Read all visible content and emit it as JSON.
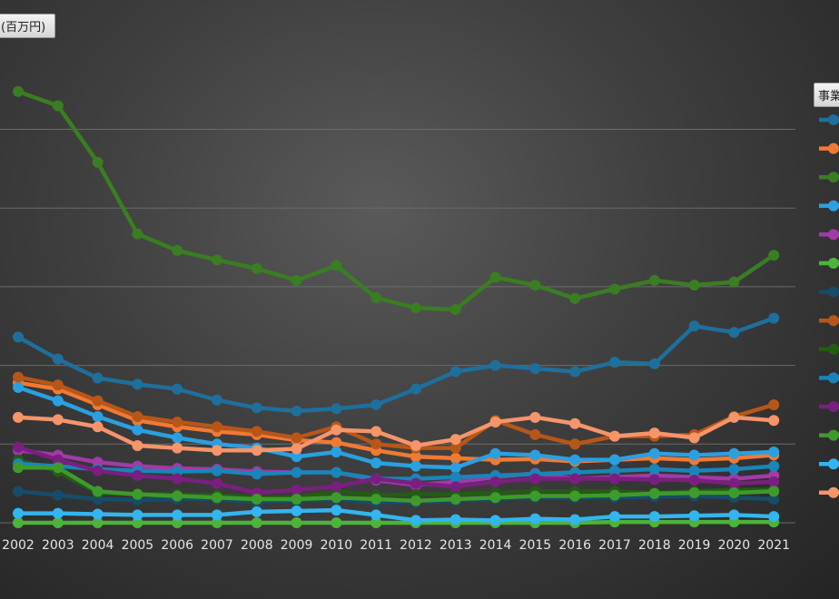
{
  "chart_data": {
    "type": "line",
    "unit_label": "(百万円)",
    "legend_title": "事業",
    "x": [
      "2002",
      "2003",
      "2004",
      "2005",
      "2006",
      "2007",
      "2008",
      "2009",
      "2010",
      "2011",
      "2012",
      "2013",
      "2014",
      "2015",
      "2016",
      "2017",
      "2018",
      "2019",
      "2020",
      "2021"
    ],
    "ylim": [
      0,
      550
    ],
    "gridlines": [
      0,
      100,
      200,
      300,
      400,
      500
    ],
    "grid": true,
    "legend_position": "right",
    "series": [
      {
        "color": "#1e6f9c",
        "values": [
          236,
          208,
          184,
          176,
          170,
          156,
          146,
          142,
          145,
          150,
          170,
          192,
          200,
          196,
          192,
          204,
          202,
          250,
          242,
          260
        ]
      },
      {
        "color": "#f07a34",
        "values": [
          178,
          170,
          150,
          130,
          122,
          116,
          112,
          105,
          102,
          92,
          84,
          82,
          80,
          81,
          78,
          80,
          82,
          80,
          82,
          86
        ]
      },
      {
        "color": "#3a7d22",
        "values": [
          548,
          530,
          458,
          367,
          346,
          334,
          323,
          308,
          327,
          286,
          273,
          271,
          312,
          302,
          285,
          297,
          308,
          302,
          306,
          340
        ]
      },
      {
        "color": "#2aa0e0",
        "values": [
          172,
          155,
          135,
          118,
          108,
          100,
          95,
          84,
          90,
          76,
          72,
          70,
          88,
          86,
          80,
          80,
          88,
          86,
          88,
          90
        ]
      },
      {
        "color": "#a23aa8",
        "values": [
          92,
          86,
          77,
          72,
          69,
          68,
          65,
          64,
          64,
          54,
          48,
          52,
          58,
          63,
          56,
          58,
          60,
          58,
          56,
          60
        ]
      },
      {
        "color": "#4db33a",
        "values": [
          0,
          0,
          0,
          0,
          0,
          0,
          0,
          0,
          0,
          0,
          0,
          0,
          0,
          0,
          0,
          1,
          1,
          1,
          1,
          1
        ]
      },
      {
        "color": "#164c6a",
        "values": [
          40,
          35,
          30,
          29,
          30,
          30,
          26,
          28,
          30,
          26,
          26,
          28,
          30,
          32,
          32,
          32,
          33,
          34,
          32,
          30
        ]
      },
      {
        "color": "#b85618",
        "values": [
          185,
          175,
          155,
          135,
          128,
          122,
          116,
          108,
          122,
          100,
          95,
          95,
          130,
          112,
          100,
          110,
          110,
          112,
          135,
          150
        ]
      },
      {
        "color": "#245c14",
        "values": [
          80,
          65,
          38,
          37,
          36,
          35,
          32,
          32,
          40,
          35,
          36,
          36,
          38,
          40,
          40,
          40,
          38,
          40,
          42,
          42
        ]
      },
      {
        "color": "#1a85b8",
        "values": [
          75,
          72,
          68,
          66,
          65,
          66,
          62,
          64,
          64,
          56,
          56,
          58,
          60,
          62,
          64,
          66,
          68,
          66,
          68,
          72
        ]
      },
      {
        "color": "#7a1f80",
        "values": [
          96,
          80,
          66,
          60,
          56,
          50,
          38,
          42,
          46,
          56,
          50,
          46,
          52,
          56,
          56,
          56,
          55,
          54,
          50,
          52
        ]
      },
      {
        "color": "#3f9a2c",
        "values": [
          70,
          70,
          40,
          36,
          34,
          32,
          30,
          30,
          32,
          30,
          28,
          30,
          32,
          34,
          34,
          35,
          37,
          38,
          38,
          40
        ]
      },
      {
        "color": "#33b5ef",
        "values": [
          12,
          12,
          11,
          10,
          10,
          10,
          14,
          15,
          16,
          10,
          3,
          4,
          3,
          5,
          4,
          8,
          8,
          9,
          10,
          8
        ]
      },
      {
        "color": "#f6946a",
        "values": [
          134,
          131,
          122,
          98,
          95,
          92,
          92,
          94,
          118,
          116,
          98,
          106,
          128,
          134,
          126,
          110,
          114,
          108,
          134,
          130
        ]
      }
    ]
  }
}
